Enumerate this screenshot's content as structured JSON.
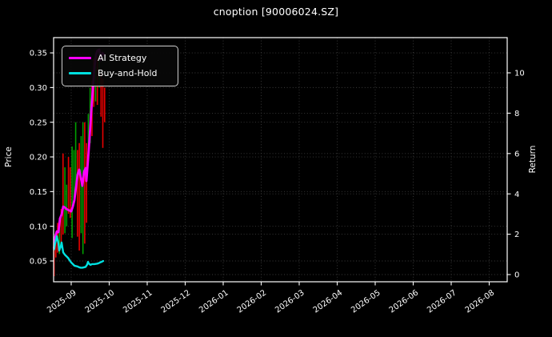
{
  "window": {
    "title": "cnoption [90006024.SZ]"
  },
  "colors": {
    "background": "#000000",
    "text": "#ffffff",
    "axis": "#ffffff",
    "grid": "#3c3c3c",
    "ai_strategy": "#ff00ff",
    "buy_and_hold": "#00e0e0",
    "candle_up": "#00a000",
    "candle_down": "#e80000",
    "legend_border": "#cfcfcf"
  },
  "legend": {
    "items": [
      {
        "label": "AI Strategy",
        "color_key": "ai_strategy"
      },
      {
        "label": "Buy-and-Hold",
        "color_key": "buy_and_hold"
      }
    ]
  },
  "chart_data": {
    "type": "candlestick+line",
    "title": "cnoption [90006024.SZ]",
    "x_axis": {
      "unit": "months since 2025-09",
      "tick_positions": [
        0,
        1,
        2,
        3,
        4,
        5,
        6,
        7,
        8,
        9,
        10,
        11
      ],
      "tick_labels": [
        "2025-09",
        "2025-10",
        "2025-11",
        "2025-12",
        "2026-01",
        "2026-02",
        "2026-03",
        "2026-04",
        "2026-05",
        "2026-06",
        "2026-07",
        "2026-08"
      ],
      "xlim": [
        -0.4632,
        11.4737
      ],
      "label_rotation_deg": 35
    },
    "y_left": {
      "label": "Price",
      "tick_values": [
        0.05,
        0.1,
        0.15,
        0.2,
        0.25,
        0.3,
        0.35
      ],
      "tick_labels": [
        "0.05",
        "0.10",
        "0.15",
        "0.20",
        "0.25",
        "0.30",
        "0.35"
      ],
      "ylim": [
        0.02,
        0.372
      ]
    },
    "y_right": {
      "label": "Return",
      "tick_values": [
        0,
        2,
        4,
        6,
        8,
        10
      ],
      "tick_labels": [
        "0",
        "2",
        "4",
        "6",
        "8",
        "10"
      ],
      "ylim": [
        -0.357,
        11.746
      ]
    },
    "grid": true,
    "legend_position": "upper-left",
    "candles": [
      {
        "t": -0.45,
        "high": 0.08,
        "low": 0.028,
        "dir": "down"
      },
      {
        "t": -0.404,
        "high": 0.09,
        "low": 0.055,
        "dir": "down"
      },
      {
        "t": -0.358,
        "high": 0.105,
        "low": 0.062,
        "dir": "down"
      },
      {
        "t": -0.309,
        "high": 0.112,
        "low": 0.06,
        "dir": "up"
      },
      {
        "t": -0.263,
        "high": 0.125,
        "low": 0.07,
        "dir": "down"
      },
      {
        "t": -0.215,
        "high": 0.205,
        "low": 0.088,
        "dir": "down"
      },
      {
        "t": -0.166,
        "high": 0.185,
        "low": 0.09,
        "dir": "up"
      },
      {
        "t": -0.12,
        "high": 0.16,
        "low": 0.1,
        "dir": "up"
      },
      {
        "t": -0.072,
        "high": 0.2,
        "low": 0.118,
        "dir": "down"
      },
      {
        "t": -0.025,
        "high": 0.185,
        "low": 0.112,
        "dir": "down"
      },
      {
        "t": 0.023,
        "high": 0.215,
        "low": 0.083,
        "dir": "up"
      },
      {
        "t": 0.072,
        "high": 0.21,
        "low": 0.14,
        "dir": "up"
      },
      {
        "t": 0.118,
        "high": 0.25,
        "low": 0.155,
        "dir": "up"
      },
      {
        "t": 0.166,
        "high": 0.21,
        "low": 0.085,
        "dir": "down"
      },
      {
        "t": 0.213,
        "high": 0.22,
        "low": 0.065,
        "dir": "down"
      },
      {
        "t": 0.261,
        "high": 0.23,
        "low": 0.09,
        "dir": "up"
      },
      {
        "t": 0.309,
        "high": 0.25,
        "low": 0.06,
        "dir": "up"
      },
      {
        "t": 0.356,
        "high": 0.25,
        "low": 0.075,
        "dir": "down"
      },
      {
        "t": 0.404,
        "high": 0.22,
        "low": 0.105,
        "dir": "down"
      },
      {
        "t": 0.451,
        "high": 0.262,
        "low": 0.2,
        "dir": "up"
      },
      {
        "t": 0.499,
        "high": 0.3,
        "low": 0.22,
        "dir": "up"
      },
      {
        "t": 0.547,
        "high": 0.31,
        "low": 0.23,
        "dir": "down"
      },
      {
        "t": 0.594,
        "high": 0.342,
        "low": 0.272,
        "dir": "down"
      },
      {
        "t": 0.642,
        "high": 0.33,
        "low": 0.28,
        "dir": "up"
      },
      {
        "t": 0.688,
        "high": 0.345,
        "low": 0.275,
        "dir": "down"
      },
      {
        "t": 0.737,
        "high": 0.353,
        "low": 0.3,
        "dir": "up"
      },
      {
        "t": 0.785,
        "high": 0.32,
        "low": 0.258,
        "dir": "down"
      },
      {
        "t": 0.832,
        "high": 0.313,
        "low": 0.213,
        "dir": "down"
      },
      {
        "t": 0.88,
        "high": 0.3,
        "low": 0.25,
        "dir": "down"
      }
    ],
    "series": [
      {
        "name": "AI Strategy",
        "axis": "right",
        "color_key": "ai_strategy",
        "points": [
          [
            -0.45,
            1.31
          ],
          [
            -0.421,
            1.87
          ],
          [
            -0.379,
            2.14
          ],
          [
            -0.337,
            2.1
          ],
          [
            -0.295,
            2.78
          ],
          [
            -0.253,
            2.98
          ],
          [
            -0.211,
            3.37
          ],
          [
            -0.168,
            3.33
          ],
          [
            -0.126,
            3.25
          ],
          [
            -0.084,
            3.21
          ],
          [
            -0.042,
            3.17
          ],
          [
            0.0,
            3.13
          ],
          [
            0.042,
            3.37
          ],
          [
            0.084,
            3.69
          ],
          [
            0.126,
            4.33
          ],
          [
            0.168,
            4.96
          ],
          [
            0.211,
            5.2
          ],
          [
            0.253,
            4.8
          ],
          [
            0.295,
            4.4
          ],
          [
            0.337,
            5.08
          ],
          [
            0.379,
            5.28
          ],
          [
            0.4,
            4.64
          ],
          [
            0.442,
            5.67
          ],
          [
            0.484,
            6.79
          ],
          [
            0.526,
            8.06
          ],
          [
            0.568,
            9.17
          ],
          [
            0.611,
            10.24
          ],
          [
            0.653,
            10.91
          ],
          [
            0.695,
            11.11
          ],
          [
            0.737,
            11.15
          ],
          [
            0.779,
            10.63
          ],
          [
            0.821,
            10.99
          ],
          [
            0.863,
            10.91
          ]
        ]
      },
      {
        "name": "Buy-and-Hold",
        "axis": "right",
        "color_key": "buy_and_hold",
        "points": [
          [
            -0.45,
            1.25
          ],
          [
            -0.421,
            1.55
          ],
          [
            -0.379,
            1.9
          ],
          [
            -0.337,
            1.55
          ],
          [
            -0.316,
            1.19
          ],
          [
            -0.274,
            1.4
          ],
          [
            -0.253,
            1.59
          ],
          [
            -0.211,
            1.1
          ],
          [
            -0.168,
            0.99
          ],
          [
            -0.126,
            0.91
          ],
          [
            -0.084,
            0.83
          ],
          [
            -0.042,
            0.71
          ],
          [
            0.0,
            0.6
          ],
          [
            0.042,
            0.52
          ],
          [
            0.084,
            0.44
          ],
          [
            0.126,
            0.42
          ],
          [
            0.168,
            0.4
          ],
          [
            0.211,
            0.36
          ],
          [
            0.253,
            0.34
          ],
          [
            0.295,
            0.34
          ],
          [
            0.337,
            0.36
          ],
          [
            0.379,
            0.38
          ],
          [
            0.421,
            0.5
          ],
          [
            0.442,
            0.63
          ],
          [
            0.463,
            0.55
          ],
          [
            0.505,
            0.48
          ],
          [
            0.547,
            0.52
          ],
          [
            0.611,
            0.52
          ],
          [
            0.674,
            0.54
          ],
          [
            0.716,
            0.56
          ],
          [
            0.758,
            0.6
          ],
          [
            0.8,
            0.63
          ],
          [
            0.842,
            0.67
          ]
        ]
      }
    ]
  }
}
